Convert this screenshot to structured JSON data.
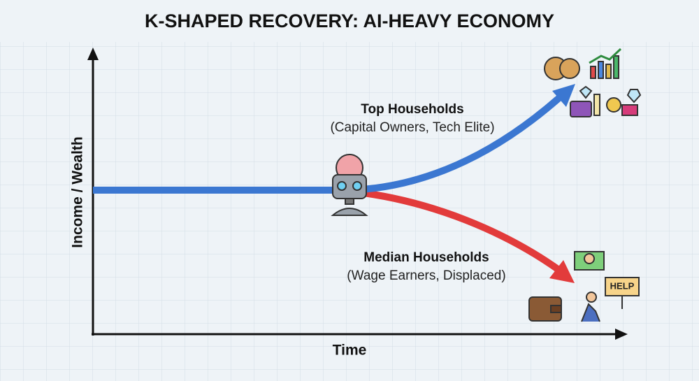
{
  "title": "K-SHAPED RECOVERY: AI-HEAVY ECONOMY",
  "axes": {
    "y_label": "Income / Wealth",
    "x_label": "Time"
  },
  "branches": {
    "top": {
      "label": "Top Households",
      "sublabel": "(Capital Owners, Tech Elite)"
    },
    "median": {
      "label": "Median Households",
      "sublabel": "(Wage Earners, Displaced)"
    }
  },
  "help_sign": "HELP"
}
